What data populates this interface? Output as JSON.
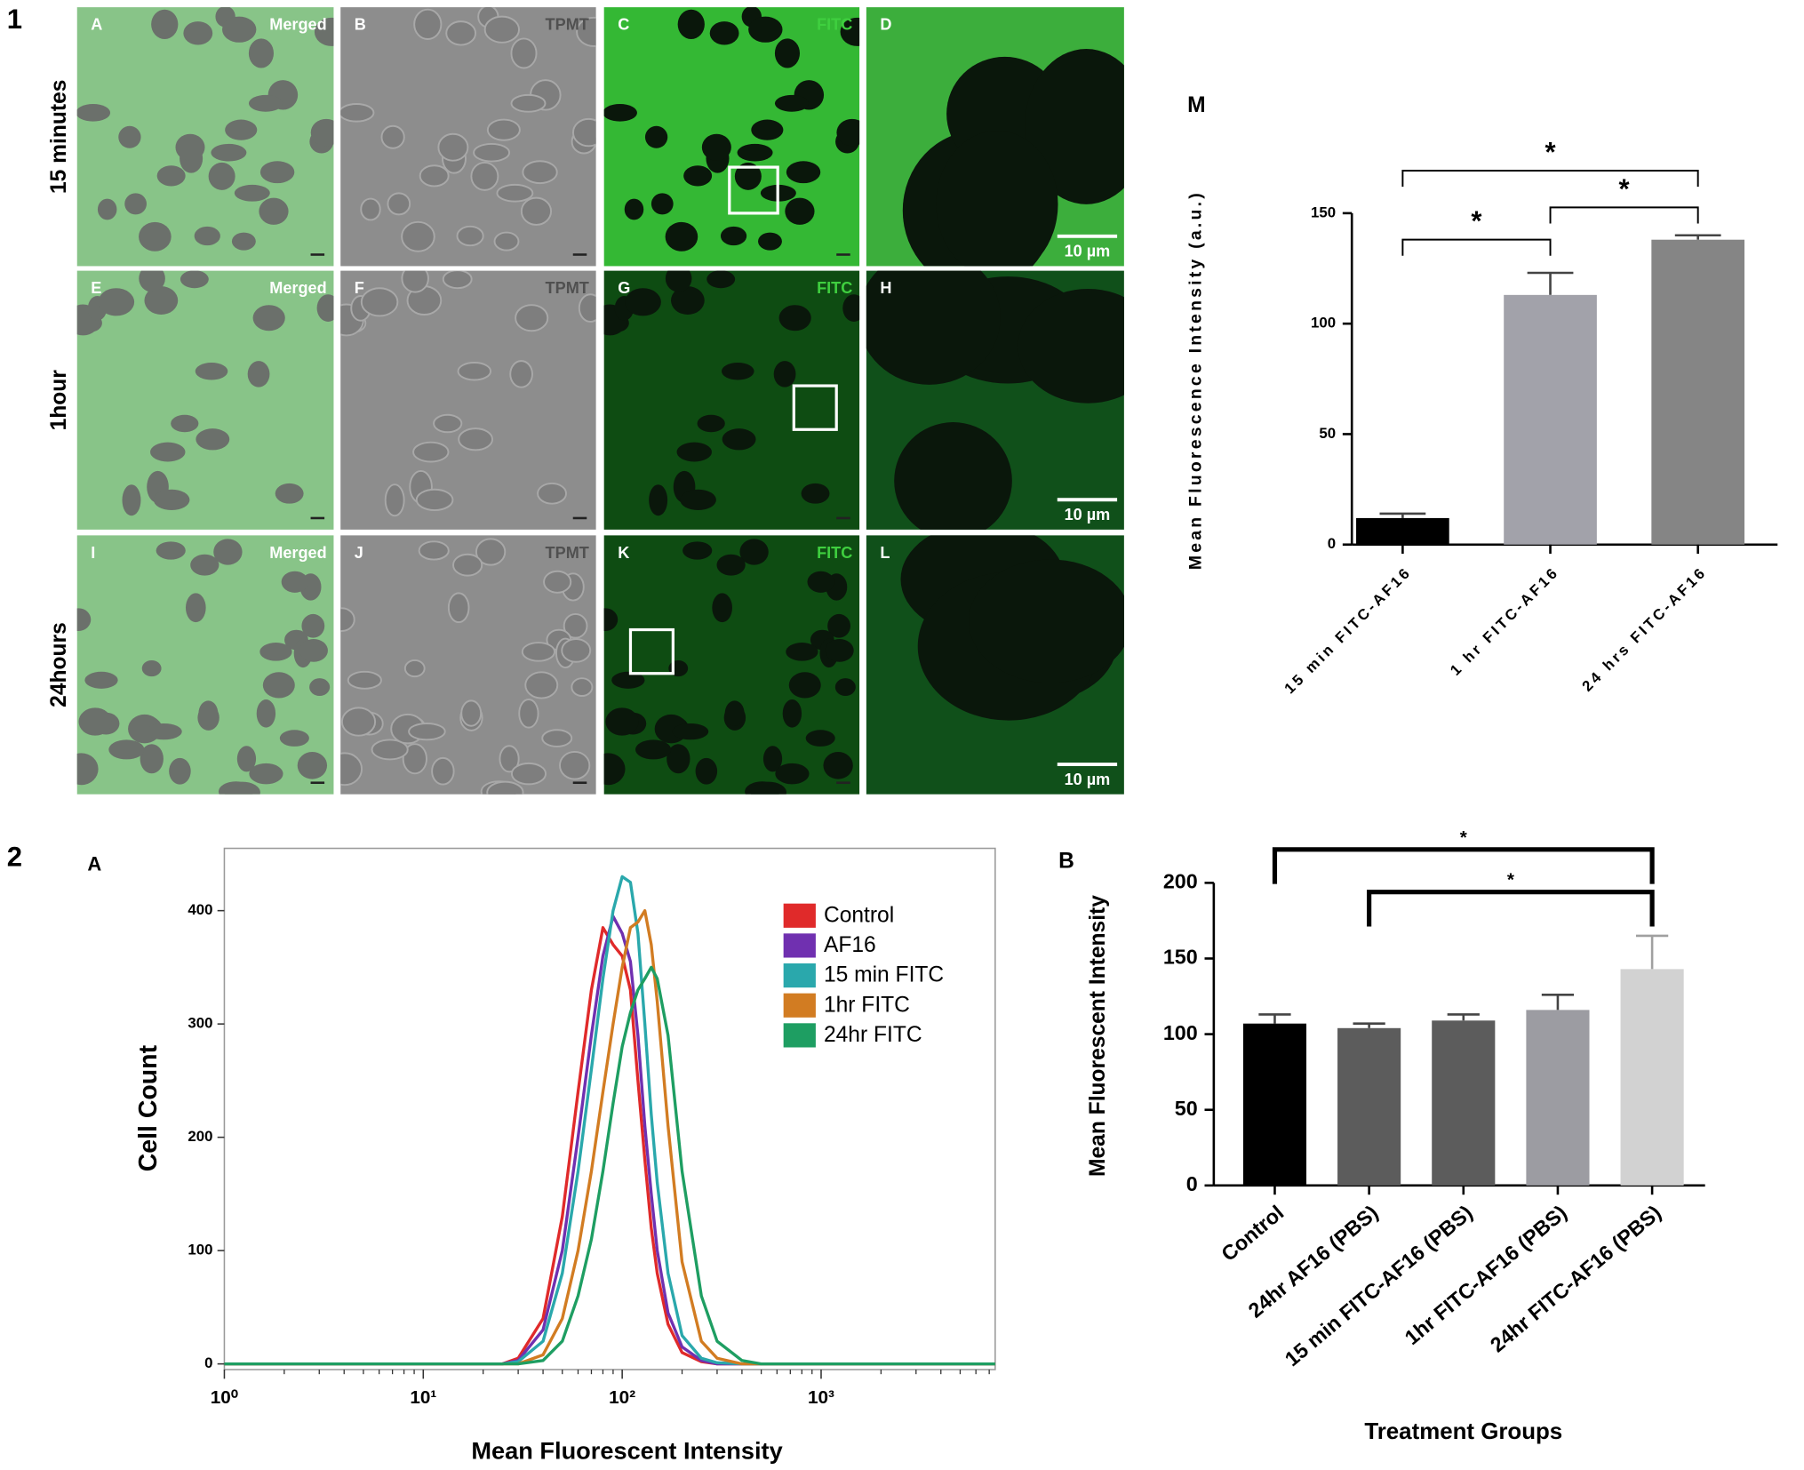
{
  "figure": {
    "parts": [
      "1",
      "2"
    ],
    "rows": [
      "15 minutes",
      "1hour",
      "24hours"
    ],
    "panels": [
      {
        "letter": "A",
        "channel": "Merged"
      },
      {
        "letter": "B",
        "channel": "TPMT"
      },
      {
        "letter": "C",
        "channel": "FITC"
      },
      {
        "letter": "D"
      },
      {
        "letter": "E",
        "channel": "Merged"
      },
      {
        "letter": "F",
        "channel": "TPMT"
      },
      {
        "letter": "G",
        "channel": "FITC"
      },
      {
        "letter": "H"
      },
      {
        "letter": "I",
        "channel": "Merged"
      },
      {
        "letter": "J",
        "channel": "TPMT"
      },
      {
        "letter": "K",
        "channel": "FITC"
      },
      {
        "letter": "L"
      }
    ],
    "scale_bars": [
      "10 µm",
      "10 µm",
      "10 µm"
    ]
  },
  "chart_data": [
    {
      "type": "bar",
      "panel": "M",
      "ylabel": "Mean Fluorescence Intensity (a.u.)",
      "categories": [
        "15 min FITC-AF16",
        "1 hr FITC-AF16",
        "24 hrs FITC-AF16"
      ],
      "values": [
        12,
        113,
        138
      ],
      "errors": [
        2,
        10,
        2
      ],
      "colors": [
        "#000000",
        "#a2a2aa",
        "#858585"
      ],
      "ylim": [
        0,
        150
      ],
      "yticks": [
        0,
        50,
        100,
        150
      ],
      "significance": [
        {
          "groups": [
            0,
            1
          ],
          "label": "*"
        },
        {
          "groups": [
            1,
            2
          ],
          "label": "*"
        },
        {
          "groups": [
            0,
            2
          ],
          "label": "*"
        }
      ]
    },
    {
      "type": "line",
      "panel": "A",
      "xlabel": "Mean Fluorescent Intensity",
      "ylabel": "Cell Count",
      "xscale": "log",
      "xlim": [
        1,
        7500
      ],
      "xticks": [
        {
          "value": 1,
          "label": "10⁰"
        },
        {
          "value": 10,
          "label": "10¹"
        },
        {
          "value": 100,
          "label": "10²"
        },
        {
          "value": 1000,
          "label": "10³"
        }
      ],
      "ylim": [
        -5,
        455
      ],
      "yticks": [
        0,
        100,
        200,
        300,
        400
      ],
      "legend": "upper right",
      "x": [
        1,
        25,
        30,
        40,
        50,
        60,
        70,
        80,
        90,
        100,
        110,
        120,
        130,
        140,
        150,
        170,
        200,
        250,
        300,
        400,
        500,
        7500
      ],
      "series": [
        {
          "name": "Control",
          "color": "#e02a2a",
          "values": [
            0,
            0,
            5,
            40,
            130,
            240,
            330,
            385,
            370,
            360,
            330,
            250,
            180,
            120,
            80,
            35,
            10,
            2,
            0,
            0,
            0,
            0
          ]
        },
        {
          "name": "AF16",
          "color": "#7030b0",
          "values": [
            0,
            0,
            3,
            30,
            100,
            200,
            290,
            360,
            395,
            380,
            355,
            290,
            210,
            150,
            100,
            45,
            15,
            3,
            0,
            0,
            0,
            0
          ]
        },
        {
          "name": "15 min FITC",
          "color": "#2aa8ac",
          "values": [
            0,
            0,
            2,
            20,
            80,
            170,
            260,
            340,
            400,
            430,
            425,
            380,
            300,
            220,
            160,
            80,
            25,
            5,
            1,
            0,
            0,
            0
          ]
        },
        {
          "name": "1hr FITC",
          "color": "#d27c22",
          "values": [
            0,
            0,
            0,
            8,
            40,
            100,
            170,
            240,
            300,
            350,
            385,
            390,
            400,
            370,
            320,
            210,
            90,
            20,
            5,
            0,
            0,
            0
          ]
        },
        {
          "name": "24hr FITC",
          "color": "#1e9e62",
          "values": [
            0,
            0,
            0,
            3,
            20,
            60,
            110,
            170,
            230,
            280,
            310,
            330,
            340,
            350,
            340,
            290,
            170,
            60,
            20,
            3,
            0,
            0
          ]
        }
      ]
    },
    {
      "type": "bar",
      "panel": "B",
      "xlabel": "Treatment Groups",
      "ylabel": "Mean Fluorescent Intensity",
      "categories": [
        "Control",
        "24hr AF16 (PBS)",
        "15 min FITC-AF16 (PBS)",
        "1hr FITC-AF16 (PBS)",
        "24hr FITC-AF16 (PBS)"
      ],
      "values": [
        107,
        104,
        109,
        116,
        143
      ],
      "errors": [
        6,
        3,
        4,
        10,
        22
      ],
      "colors": [
        "#000000",
        "#5c5c5c",
        "#5c5c5c",
        "#9c9ca2",
        "#d2d2d2"
      ],
      "ylim": [
        0,
        200
      ],
      "yticks": [
        0,
        50,
        100,
        150,
        200
      ],
      "significance": [
        {
          "groups": [
            0,
            4
          ],
          "label": "*"
        },
        {
          "groups": [
            1,
            4
          ],
          "label": "*"
        }
      ]
    }
  ]
}
